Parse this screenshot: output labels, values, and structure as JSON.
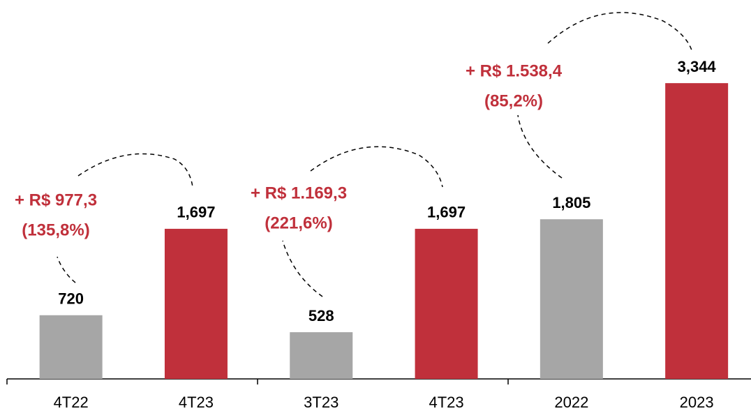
{
  "chart_data": {
    "type": "bar",
    "categories": [
      "4T22",
      "4T23",
      "3T23",
      "4T23",
      "2022",
      "2023"
    ],
    "values": [
      720,
      1697,
      528,
      1697,
      1805,
      3344
    ],
    "value_labels": [
      "720",
      "1,697",
      "528",
      "1,697",
      "1,805",
      "3,344"
    ],
    "colors": [
      "#a6a6a6",
      "#c0303b",
      "#a6a6a6",
      "#c0303b",
      "#a6a6a6",
      "#c0303b"
    ],
    "ylim": [
      0,
      4000
    ],
    "annotations": [
      [
        "+ R$ 977,3",
        "(135,8%)"
      ],
      [
        "+ R$ 1.169,3",
        "(221,6%)"
      ],
      [
        "+ R$ 1.538,4",
        "(85,2%)"
      ]
    ]
  }
}
